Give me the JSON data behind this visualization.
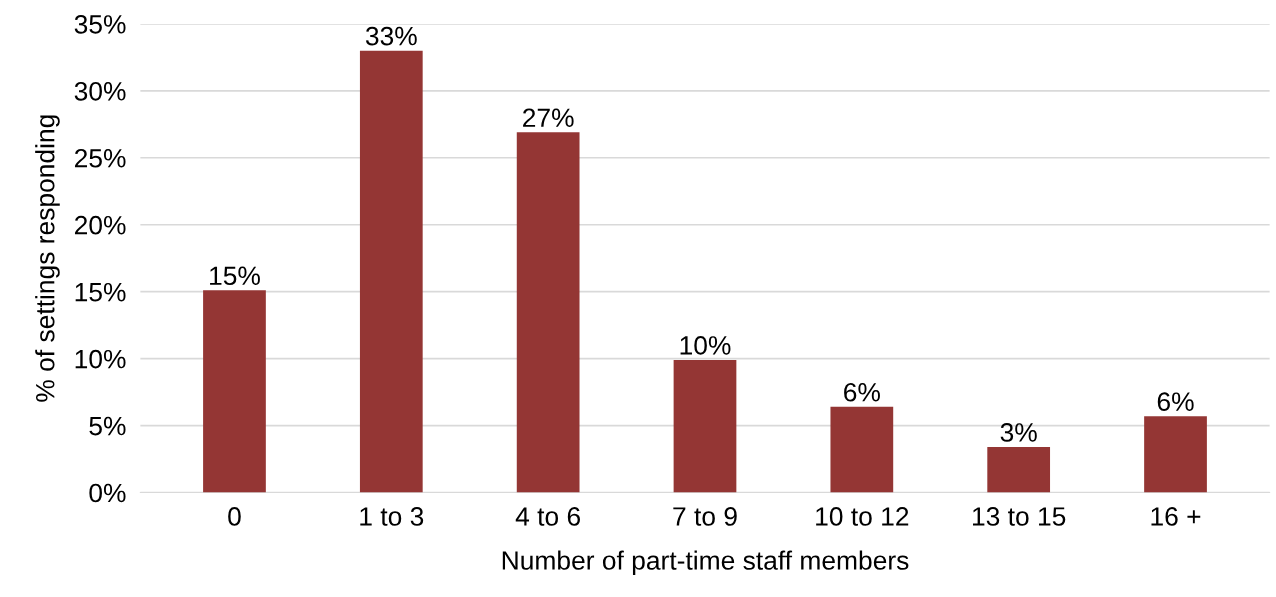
{
  "chart_data": {
    "type": "bar",
    "xlabel": "Number of part-time staff members",
    "ylabel": "% of settings responding",
    "categories": [
      "0",
      "1 to 3",
      "4 to 6",
      "7 to 9",
      "10 to 12",
      "13 to 15",
      "16 +"
    ],
    "values": [
      15.1,
      33.0,
      26.9,
      9.9,
      6.4,
      3.4,
      5.7
    ],
    "value_labels": [
      "15%",
      "33%",
      "27%",
      "10%",
      "6%",
      "3%",
      "6%"
    ],
    "color": "#943634",
    "ylim": [
      0,
      35
    ],
    "yticks": [
      {
        "value": 0,
        "label": "0%"
      },
      {
        "value": 5,
        "label": "5%"
      },
      {
        "value": 10,
        "label": "10%"
      },
      {
        "value": 15,
        "label": "15%"
      },
      {
        "value": 20,
        "label": "20%"
      },
      {
        "value": 25,
        "label": "25%"
      },
      {
        "value": 30,
        "label": "30%"
      },
      {
        "value": 35,
        "label": "35%"
      }
    ],
    "grid": "y",
    "legend": false
  }
}
